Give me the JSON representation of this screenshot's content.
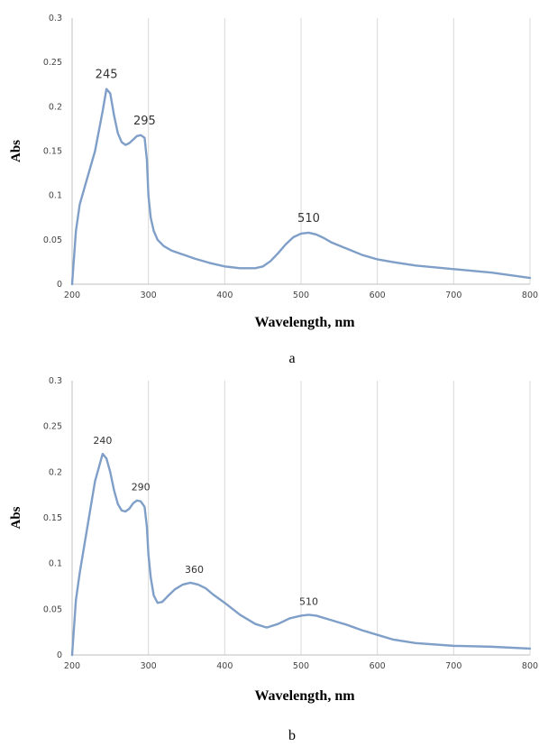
{
  "chart_data": [
    {
      "type": "line",
      "panel": "a",
      "xlabel": "Wavelength, nm",
      "ylabel": "Abs",
      "xlim": [
        200,
        800
      ],
      "ylim": [
        0,
        0.3
      ],
      "x_ticks": [
        "200",
        "300",
        "400",
        "500",
        "600",
        "700",
        "800"
      ],
      "y_ticks": [
        "0",
        "0.05",
        "0.1",
        "0.15",
        "0.2",
        "0.25",
        "0.3"
      ],
      "grid": "vertical",
      "line_color": "#7f9fc8",
      "series": [
        {
          "x": [
            200,
            205,
            210,
            220,
            230,
            240,
            245,
            250,
            255,
            260,
            265,
            270,
            275,
            280,
            285,
            290,
            295,
            298,
            300,
            303,
            307,
            312,
            320,
            330,
            340,
            350,
            360,
            380,
            400,
            420,
            440,
            450,
            460,
            470,
            480,
            490,
            500,
            510,
            520,
            530,
            540,
            560,
            580,
            600,
            620,
            650,
            700,
            750,
            800
          ],
          "y": [
            0.0,
            0.06,
            0.09,
            0.12,
            0.15,
            0.195,
            0.22,
            0.215,
            0.19,
            0.17,
            0.16,
            0.157,
            0.159,
            0.163,
            0.167,
            0.168,
            0.165,
            0.14,
            0.1,
            0.075,
            0.06,
            0.05,
            0.043,
            0.038,
            0.035,
            0.032,
            0.029,
            0.024,
            0.02,
            0.018,
            0.018,
            0.02,
            0.026,
            0.035,
            0.045,
            0.053,
            0.057,
            0.058,
            0.056,
            0.052,
            0.047,
            0.04,
            0.033,
            0.028,
            0.025,
            0.021,
            0.017,
            0.013,
            0.007
          ]
        }
      ],
      "annotations": [
        {
          "text": "245",
          "x": 245,
          "y": 0.22
        },
        {
          "text": "295",
          "x": 295,
          "y": 0.168
        },
        {
          "text": "510",
          "x": 510,
          "y": 0.058
        }
      ],
      "caption": "a"
    },
    {
      "type": "line",
      "panel": "b",
      "xlabel": "Wavelength, nm",
      "ylabel": "Abs",
      "xlim": [
        200,
        800
      ],
      "ylim": [
        0,
        0.3
      ],
      "x_ticks": [
        "200",
        "300",
        "400",
        "500",
        "600",
        "700",
        "800"
      ],
      "y_ticks": [
        "0",
        "0.05",
        "0.1",
        "0.15",
        "0.2",
        "0.25",
        "0.3"
      ],
      "grid": "vertical",
      "line_color": "#7f9fc8",
      "series": [
        {
          "x": [
            200,
            205,
            210,
            220,
            230,
            240,
            245,
            250,
            255,
            260,
            265,
            270,
            275,
            280,
            285,
            290,
            295,
            298,
            300,
            303,
            307,
            312,
            318,
            325,
            335,
            345,
            355,
            365,
            375,
            385,
            400,
            420,
            440,
            455,
            470,
            485,
            500,
            510,
            520,
            540,
            560,
            580,
            600,
            620,
            650,
            700,
            750,
            800
          ],
          "y": [
            0.0,
            0.06,
            0.09,
            0.14,
            0.19,
            0.22,
            0.215,
            0.2,
            0.18,
            0.165,
            0.158,
            0.157,
            0.16,
            0.166,
            0.169,
            0.168,
            0.162,
            0.14,
            0.11,
            0.085,
            0.065,
            0.057,
            0.058,
            0.064,
            0.072,
            0.077,
            0.079,
            0.077,
            0.073,
            0.066,
            0.057,
            0.044,
            0.034,
            0.03,
            0.034,
            0.04,
            0.043,
            0.044,
            0.043,
            0.038,
            0.033,
            0.027,
            0.022,
            0.017,
            0.013,
            0.01,
            0.009,
            0.007
          ]
        }
      ],
      "annotations": [
        {
          "text": "240",
          "x": 240,
          "y": 0.22
        },
        {
          "text": "290",
          "x": 290,
          "y": 0.169
        },
        {
          "text": "360",
          "x": 360,
          "y": 0.079
        },
        {
          "text": "510",
          "x": 510,
          "y": 0.044
        }
      ],
      "caption": "b"
    }
  ]
}
